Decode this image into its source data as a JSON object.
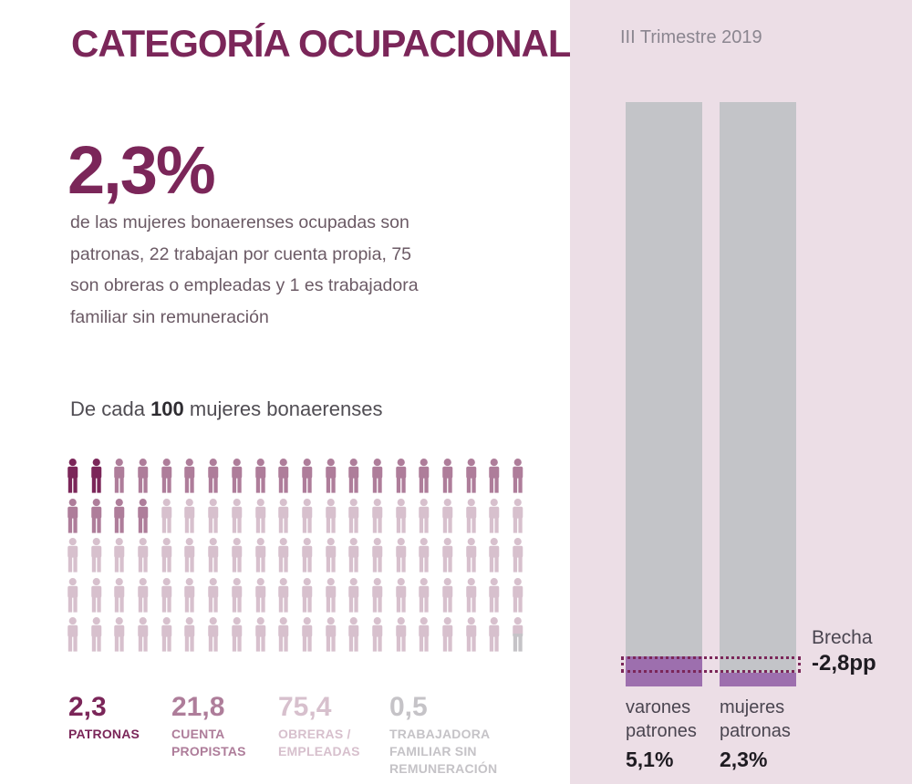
{
  "palette": {
    "dark_magenta": "#7b2659",
    "medium_mauve": "#ae7d9a",
    "light_pink": "#d7c0cd",
    "neutral_gray": "#c5c3c7",
    "panel_pink": "#ecdee6",
    "bar_gray": "#c3c4c8",
    "bar_purple": "#9d6fae",
    "body_text": "#6b5a65",
    "dark_text": "#1e1b21",
    "label_text": "#4a4550",
    "period_text": "#8b8690"
  },
  "left": {
    "title": "CATEGORÍA OCUPACIONAL",
    "stat_value": "2,3%",
    "stat_text": "de las mujeres bonaerenses ocupadas son patronas, 22 trabajan por cuenta propia, 75 son obreras o empleadas y 1 es trabajadora familiar sin remuneración",
    "pictogram_heading": {
      "prefix": "De cada ",
      "bold": "100",
      "suffix": " mujeres bonaerenses"
    },
    "pictogram": {
      "rows": 5,
      "cols": 20,
      "groups": [
        {
          "name": "patronas",
          "icons": 2,
          "icon_fill": "#7b2659"
        },
        {
          "name": "cuenta-propistas",
          "icons": 22,
          "icon_fill": "#ae7d9a"
        },
        {
          "name": "obreras-empleadas",
          "icons": 75,
          "icon_fill": "#d7c0cd"
        },
        {
          "name": "trabajadora-familiar",
          "icons": 1,
          "icon_fill": "split"
        }
      ]
    },
    "legend": [
      {
        "value": "2,3",
        "label": "PATRONAS",
        "color": "#7b2659"
      },
      {
        "value": "21,8",
        "label": "CUENTA PROPISTAS",
        "color": "#ae7d9a"
      },
      {
        "value": "75,4",
        "label": "OBRERAS / EMPLEADAS",
        "color": "#d7c0cd"
      },
      {
        "value": "0,5",
        "label": "TRABAJADORA FAMILIAR SIN REMUNERACIÓN",
        "color": "#c5c3c7"
      }
    ]
  },
  "right": {
    "period": "III Trimestre 2019",
    "bars": [
      {
        "label_line1": "varones",
        "label_line2": "patrones",
        "value": 5.1,
        "value_label": "5,1%"
      },
      {
        "label_line1": "mujeres",
        "label_line2": "patronas",
        "value": 2.3,
        "value_label": "2,3%"
      }
    ],
    "gap": {
      "label": "Brecha",
      "value": "-2,8pp"
    }
  },
  "chart_data": [
    {
      "type": "bar",
      "representation": "pictogram waffle of 100 person icons (5 rows x 20 columns)",
      "title": "De cada 100 mujeres bonaerenses",
      "categories": [
        "patronas",
        "cuenta propistas",
        "obreras / empleadas",
        "trabajadora familiar sin remuneración"
      ],
      "values": [
        2.3,
        21.8,
        75.4,
        0.5
      ],
      "value_labels": [
        "2,3",
        "21,8",
        "75,4",
        "0,5"
      ],
      "colors": [
        "#7b2659",
        "#ae7d9a",
        "#d7c0cd",
        "#c5c3c7"
      ],
      "total": 100
    },
    {
      "type": "bar",
      "title": "III Trimestre 2019",
      "categories": [
        "varones patrones",
        "mujeres patronas"
      ],
      "values": [
        5.1,
        2.3
      ],
      "value_labels": [
        "5,1%",
        "2,3%"
      ],
      "ylim": [
        0,
        100
      ],
      "grid": false,
      "annotation": {
        "label": "Brecha",
        "value": "-2,8pp"
      },
      "bar_background_color": "#c3c4c8",
      "fill_color": "#9d6fae",
      "highlight_border_color": "#7b2659"
    }
  ]
}
